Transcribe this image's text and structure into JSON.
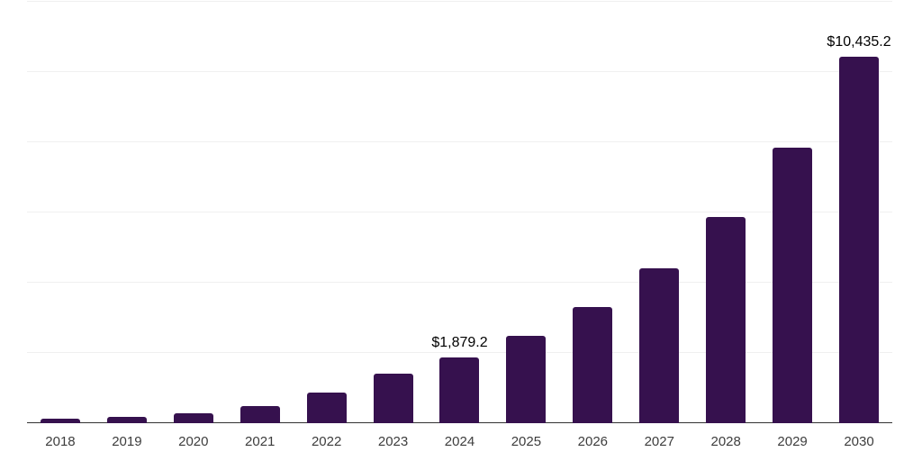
{
  "chart_data": {
    "type": "bar",
    "title": "",
    "xlabel": "",
    "ylabel": "",
    "categories": [
      "2018",
      "2019",
      "2020",
      "2021",
      "2022",
      "2023",
      "2024",
      "2025",
      "2026",
      "2027",
      "2028",
      "2029",
      "2030"
    ],
    "values": [
      120,
      190,
      290,
      500,
      860,
      1400,
      1879.2,
      2500,
      3320,
      4420,
      5880,
      7840,
      10435.2
    ],
    "ylim": [
      0,
      12000
    ],
    "grid_step": 2000,
    "grid": true,
    "legend": false,
    "annotations": [
      {
        "category": "2024",
        "label": "$1,879.2"
      },
      {
        "category": "2030",
        "label": "$10,435.2"
      }
    ],
    "colors": {
      "bar": "#36114E",
      "grid": "#f0f0f0",
      "axis": "#333333",
      "tick_label": "#3d3d3d",
      "data_label": "#000000",
      "background": "#ffffff"
    }
  }
}
